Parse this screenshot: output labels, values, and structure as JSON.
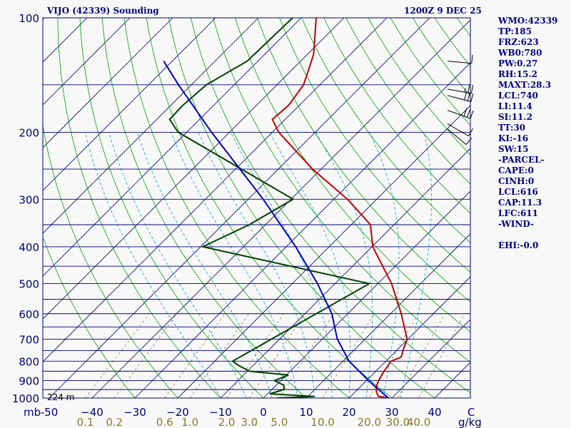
{
  "header": {
    "title_left": "VIJO (42339) Sounding",
    "title_right": "1200Z  9 DEC 25"
  },
  "station_elevation": "224 m",
  "stats": [
    "WMO:42339",
    "TP:185",
    "FRZ:623",
    "WB0:780",
    "PW:0.27",
    "RH:15.2",
    "MAXT:28.3",
    "LCL:740",
    "LI:11.4",
    "SI:11.2",
    "TT:30",
    "KI:-16",
    "SW:15",
    "-PARCEL-",
    "CAPE:0",
    "CINH:0",
    "LCL:616",
    "CAP:11.3",
    "LFC:611",
    "-WIND-",
    "",
    "EHI:-0.0"
  ],
  "colors": {
    "isobar": "#000080",
    "dry_adiabat": "#00a000",
    "moist_adiabat": "#00a0c8",
    "mixing_ratio": "#8b7a2e",
    "isotherm": "#000080",
    "temperature": "#c00000",
    "dewpoint": "#004000",
    "parcel": "#0000c0",
    "wind_barb": "#000000",
    "text": "#000080"
  },
  "chart_data": {
    "type": "line",
    "diagram": "skew-T log-P",
    "y_axis_unit": "mb",
    "x_axis_unit": "C",
    "mixing_ratio_unit": "g/kg",
    "pressure_ticks": [
      100,
      200,
      300,
      400,
      500,
      600,
      700,
      800,
      900,
      1000
    ],
    "pressure_labels": [
      "100",
      "200",
      "300",
      "400",
      "500",
      "600",
      "700",
      "800",
      "900",
      "1000"
    ],
    "isobars": [
      100,
      150,
      200,
      250,
      300,
      350,
      400,
      450,
      500,
      550,
      600,
      650,
      700,
      750,
      800,
      850,
      900,
      950,
      1000
    ],
    "temperature_ticks": [
      -50,
      -40,
      -30,
      -20,
      -10,
      0,
      10,
      20,
      30,
      40
    ],
    "temperature_labels": [
      "-50",
      "−40",
      "−30",
      "−20",
      "−10",
      "0",
      "10",
      "20",
      "30",
      "40"
    ],
    "mixing_ratio_ticks": [
      0.1,
      0.2,
      0.6,
      1.0,
      2.0,
      3.0,
      5.0,
      10.0,
      20.0,
      30.0,
      40.0
    ],
    "mixing_ratio_labels": [
      "0.1",
      "0.2",
      "0.6",
      "1.0",
      "2.0",
      "3.0",
      "5.0",
      "10.0",
      "20.0",
      "30.0",
      "40.0"
    ],
    "ylim": [
      1000,
      100
    ],
    "series": [
      {
        "id": "temperature",
        "points": [
          [
            1000,
            29.2
          ],
          [
            990,
            26.5
          ],
          [
            975,
            25.6
          ],
          [
            960,
            24.8
          ],
          [
            925,
            23.5
          ],
          [
            900,
            22.8
          ],
          [
            850,
            21.9
          ],
          [
            800,
            21.2
          ],
          [
            780,
            22.6
          ],
          [
            750,
            21.5
          ],
          [
            700,
            19.8
          ],
          [
            600,
            12.5
          ],
          [
            500,
            3.2
          ],
          [
            400,
            -9.8
          ],
          [
            350,
            -15.5
          ],
          [
            300,
            -26.8
          ],
          [
            250,
            -42
          ],
          [
            200,
            -58.5
          ],
          [
            185,
            -63
          ],
          [
            170,
            -62.5
          ],
          [
            150,
            -63.8
          ],
          [
            125,
            -68.5
          ],
          [
            100,
            -76.5
          ]
        ]
      },
      {
        "id": "dewpoint",
        "points": [
          [
            1000,
            3.2
          ],
          [
            990,
            11.5
          ],
          [
            975,
            0.5
          ],
          [
            950,
            2.8
          ],
          [
            925,
            1.8
          ],
          [
            900,
            -1.5
          ],
          [
            870,
            0.5
          ],
          [
            850,
            -9.5
          ],
          [
            820,
            -13.5
          ],
          [
            800,
            -15.8
          ],
          [
            500,
            -2
          ],
          [
            400,
            -49.5
          ],
          [
            350,
            -43.8
          ],
          [
            300,
            -39.5
          ],
          [
            200,
            -82
          ],
          [
            185,
            -87
          ],
          [
            170,
            -87.2
          ],
          [
            150,
            -86.5
          ],
          [
            130,
            -82.5
          ],
          [
            100,
            -82
          ]
        ]
      },
      {
        "id": "parcel",
        "points": [
          [
            1000,
            29.2
          ],
          [
            900,
            20.5
          ],
          [
            800,
            11.4
          ],
          [
            700,
            3.5
          ],
          [
            616,
            -2.5
          ],
          [
            600,
            -3.7
          ],
          [
            500,
            -14.1
          ],
          [
            400,
            -27.8
          ],
          [
            300,
            -46.5
          ],
          [
            200,
            -74.2
          ],
          [
            150,
            -93
          ],
          [
            130,
            -102
          ]
        ]
      }
    ],
    "winds": [
      {
        "pressure": 130,
        "direction": 95,
        "speed": 10
      },
      {
        "pressure": 154,
        "direction": 100,
        "speed": 25
      },
      {
        "pressure": 160,
        "direction": 105,
        "speed": 30
      },
      {
        "pressure": 175,
        "direction": 110,
        "speed": 30
      },
      {
        "pressure": 190,
        "direction": 120,
        "speed": 10
      },
      {
        "pressure": 196,
        "direction": 130,
        "speed": 10
      }
    ]
  }
}
